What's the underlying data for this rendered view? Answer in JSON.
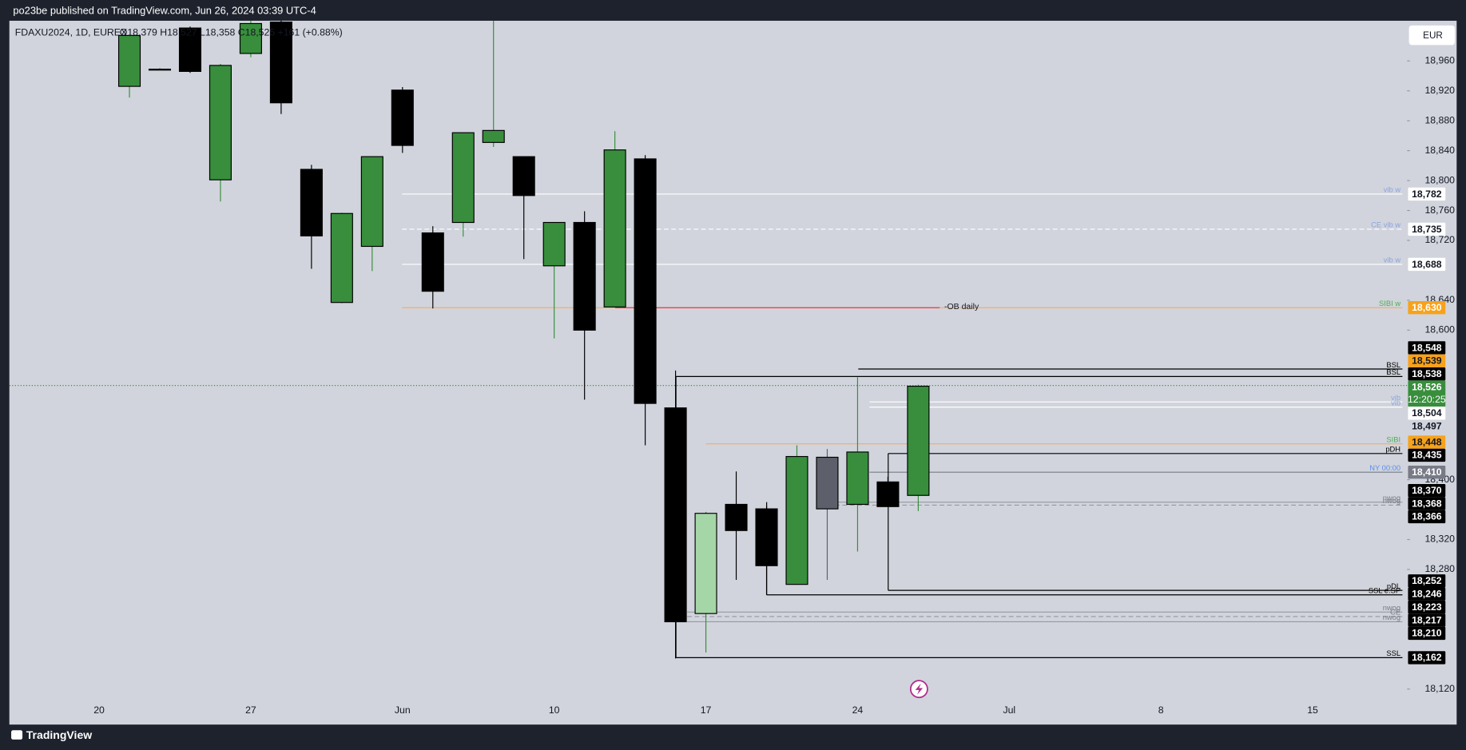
{
  "header": {
    "publisher": "po23be published on TradingView.com, Jun 26, 2024 03:39 UTC-4",
    "brand": "TradingView"
  },
  "chart_data": {
    "type": "candlestick",
    "symbol": "FDAXU2024, 1D, EUREX",
    "ohlc_text": "O18,379  H18,527  L18,358  C18,525  +161 (+0.88%)",
    "currency": "EUR",
    "categories": [
      "20",
      null,
      null,
      null,
      null,
      "27",
      null,
      null,
      null,
      null,
      "Jun",
      null,
      null,
      null,
      null,
      "10",
      null,
      null,
      null,
      null,
      "17",
      null,
      null,
      null,
      null,
      "24",
      null,
      null,
      null,
      null,
      "Jul",
      null,
      null,
      null,
      null,
      "8",
      null,
      null,
      null,
      null,
      "15",
      null,
      null
    ],
    "open": [
      null,
      18926,
      18949,
      19004,
      18801,
      18970,
      19012,
      18815,
      18637,
      18712,
      18921,
      18730,
      18744,
      18851,
      18832,
      18686,
      18744,
      18631,
      18829,
      18496,
      18221,
      18367,
      18361,
      18260,
      18430,
      18367,
      18397,
      18379,
      null,
      null,
      null,
      null,
      null,
      null,
      null,
      null,
      null,
      null,
      null,
      null,
      null,
      null,
      null
    ],
    "high": [
      null,
      18995,
      18950,
      19006,
      18956,
      19014,
      19014,
      18821,
      18757,
      18832,
      18925,
      18739,
      18864,
      19014,
      18832,
      18744,
      18759,
      18866,
      18834,
      18546,
      18357,
      18411,
      18365,
      18446,
      18441,
      18537,
      18404,
      18527,
      null,
      null,
      null,
      null,
      null,
      null,
      null,
      null,
      null,
      null,
      null,
      null,
      null,
      null,
      null
    ],
    "low": [
      null,
      18911,
      18948,
      18944,
      18772,
      18965,
      18889,
      18682,
      18636,
      18679,
      18837,
      18629,
      18725,
      18845,
      18695,
      18589,
      18507,
      18631,
      18446,
      18161,
      18169,
      18266,
      18246,
      18260,
      18266,
      18304,
      18364,
      18358,
      null,
      null,
      null,
      null,
      null,
      null,
      null,
      null,
      null,
      null,
      null,
      null,
      null,
      null,
      null
    ],
    "close": [
      null,
      18994,
      18949,
      18946,
      18954,
      19010,
      18904,
      18726,
      18756,
      18832,
      18847,
      18652,
      18864,
      18867,
      18780,
      18744,
      18600,
      18841,
      18502,
      18210,
      18355,
      18332,
      18285,
      18431,
      18361,
      18437,
      18364,
      18525,
      null,
      null,
      null,
      null,
      null,
      null,
      null,
      null,
      null,
      null,
      null,
      null,
      null,
      null,
      null
    ],
    "colors": [
      null,
      "#388e3c",
      "#000000",
      "#000000",
      "#388e3c",
      "#388e3c",
      "#000000",
      "#000000",
      "#388e3c",
      "#388e3c",
      "#000000",
      "#000000",
      "#388e3c",
      "#388e3c",
      "#000000",
      "#388e3c",
      "#000000",
      "#388e3c",
      "#000000",
      "#000000",
      "#a5d6a7",
      "#000000",
      "#000000",
      "#388e3c",
      "#5d606b",
      "#388e3c",
      "#000000",
      "#388e3c",
      null,
      null,
      null,
      null,
      null,
      null,
      null,
      null,
      null,
      null,
      null,
      null,
      null,
      null,
      null
    ],
    "ylim": [
      18100,
      19015
    ],
    "yticks": [
      {
        "value": 18960,
        "label": "18,960"
      },
      {
        "value": 18920,
        "label": "18,920"
      },
      {
        "value": 18880,
        "label": "18,880"
      },
      {
        "value": 18840,
        "label": "18,840"
      },
      {
        "value": 18800,
        "label": "18,800"
      },
      {
        "value": 18760,
        "label": "18,760"
      },
      {
        "value": 18720,
        "label": "18,720"
      },
      {
        "value": 18640,
        "label": "18,640"
      },
      {
        "value": 18600,
        "label": "18,600"
      },
      {
        "value": 18400,
        "label": "18,400"
      },
      {
        "value": 18320,
        "label": "18,320"
      },
      {
        "value": 18280,
        "label": "18,280"
      },
      {
        "value": 18120,
        "label": "18,120"
      }
    ],
    "grid": false,
    "levels": [
      {
        "value": 18782,
        "text": "vib w",
        "text_color": "#8aa4e0",
        "line_color": "#ffffff",
        "dash": false
      },
      {
        "value": 18735,
        "text": "CE vib w",
        "text_color": "#8aa4e0",
        "line_color": "#ffffff",
        "dash": true
      },
      {
        "value": 18688,
        "text": "vib w",
        "text_color": "#8aa4e0",
        "line_color": "#ffffff",
        "dash": false
      },
      {
        "value": 18630,
        "text": "SIBI w",
        "text_color": "#4caf50",
        "line_color": "#f0b070",
        "dash": false
      },
      {
        "value": 18548,
        "text": "BSL",
        "text_color": "#000000",
        "line_color": "#000000",
        "dash": false
      },
      {
        "value": 18538,
        "text": "BSL",
        "text_color": "#000000",
        "line_color": "#000000",
        "dash": false
      },
      {
        "value": 18504,
        "text": "vib",
        "text_color": "#8aa4e0",
        "line_color": "#ffffff",
        "dash": false
      },
      {
        "value": 18497,
        "text": "vib",
        "text_color": "#8aa4e0",
        "line_color": "#ffffff",
        "dash": false
      },
      {
        "value": 18448,
        "text": "SIBI",
        "text_color": "#4caf50",
        "line_color": "#f0b070",
        "dash": false
      },
      {
        "value": 18435,
        "text": "pDH",
        "text_color": "#000000",
        "line_color": "#000000",
        "dash": false
      },
      {
        "value": 18410,
        "text": "NY 00:00",
        "text_color": "#5b8def",
        "line_color": "#787b86",
        "dash": false
      },
      {
        "value": 18370,
        "text": "nwog",
        "text_color": "#787b86",
        "line_color": "#9598a1",
        "dash": false
      },
      {
        "value": 18366,
        "text": "nwog",
        "text_color": "#787b86",
        "line_color": "#9598a1",
        "dash": true
      },
      {
        "value": 18252,
        "text": "pDL",
        "text_color": "#000000",
        "line_color": "#000000",
        "dash": false
      },
      {
        "value": 18246,
        "text": "SSL e.SP",
        "text_color": "#000000",
        "line_color": "#000000",
        "dash": false
      },
      {
        "value": 18223,
        "text": "nwog",
        "text_color": "#787b86",
        "line_color": "#9598a1",
        "dash": false
      },
      {
        "value": 18217,
        "text": "CE",
        "text_color": "#787b86",
        "line_color": "#9598a1",
        "dash": true
      },
      {
        "value": 18210,
        "text": "nwog",
        "text_color": "#787b86",
        "line_color": "#9598a1",
        "dash": false
      },
      {
        "value": 18162,
        "text": "SSL",
        "text_color": "#000000",
        "line_color": "#000000",
        "dash": false
      }
    ],
    "annotation": {
      "value": 18630,
      "text": "-OB daily",
      "color": "#f23645"
    },
    "price_tags": [
      {
        "value": 18782,
        "label": "18,782",
        "bg": "#ffffff",
        "fg": "#131722"
      },
      {
        "value": 18735,
        "label": "18,735",
        "bg": "#ffffff",
        "fg": "#131722"
      },
      {
        "value": 18688,
        "label": "18,688",
        "bg": "#ffffff",
        "fg": "#131722"
      },
      {
        "value": 18630,
        "label": "18,630",
        "bg": "#f7a21b",
        "fg": "#ffffff"
      },
      {
        "value": 18548,
        "label": "18,548",
        "bg": "#000000",
        "fg": "#ffffff"
      },
      {
        "value": 18539,
        "label": "18,539",
        "bg": "#f7a21b",
        "fg": "#131722"
      },
      {
        "value": 18538,
        "label": "18,538",
        "bg": "#000000",
        "fg": "#ffffff"
      },
      {
        "value": 18526,
        "label": "18,526",
        "bg": "#388e3c",
        "fg": "#ffffff",
        "sub": "12:20:25"
      },
      {
        "value": 18504,
        "label": "18,504",
        "bg": "#ffffff",
        "fg": "#131722"
      },
      {
        "value": 18497,
        "label": "18,497",
        "bg": "#d1d4dc",
        "fg": "#131722"
      },
      {
        "value": 18448,
        "label": "18,448",
        "bg": "#f7a21b",
        "fg": "#131722"
      },
      {
        "value": 18435,
        "label": "18,435",
        "bg": "#000000",
        "fg": "#ffffff"
      },
      {
        "value": 18410,
        "label": "18,410",
        "bg": "#787b86",
        "fg": "#ffffff"
      },
      {
        "value": 18370,
        "label": "18,370",
        "bg": "#000000",
        "fg": "#ffffff"
      },
      {
        "value": 18368,
        "label": "18,368",
        "bg": "#000000",
        "fg": "#ffffff"
      },
      {
        "value": 18366,
        "label": "18,366",
        "bg": "#000000",
        "fg": "#ffffff"
      },
      {
        "value": 18252,
        "label": "18,252",
        "bg": "#000000",
        "fg": "#ffffff"
      },
      {
        "value": 18246,
        "label": "18,246",
        "bg": "#000000",
        "fg": "#ffffff"
      },
      {
        "value": 18223,
        "label": "18,223",
        "bg": "#000000",
        "fg": "#ffffff"
      },
      {
        "value": 18217,
        "label": "18,217",
        "bg": "#000000",
        "fg": "#ffffff"
      },
      {
        "value": 18210,
        "label": "18,210",
        "bg": "#000000",
        "fg": "#ffffff"
      },
      {
        "value": 18162,
        "label": "18,162",
        "bg": "#000000",
        "fg": "#ffffff"
      }
    ],
    "last_price": 18526,
    "last_color": "#388e3c"
  }
}
